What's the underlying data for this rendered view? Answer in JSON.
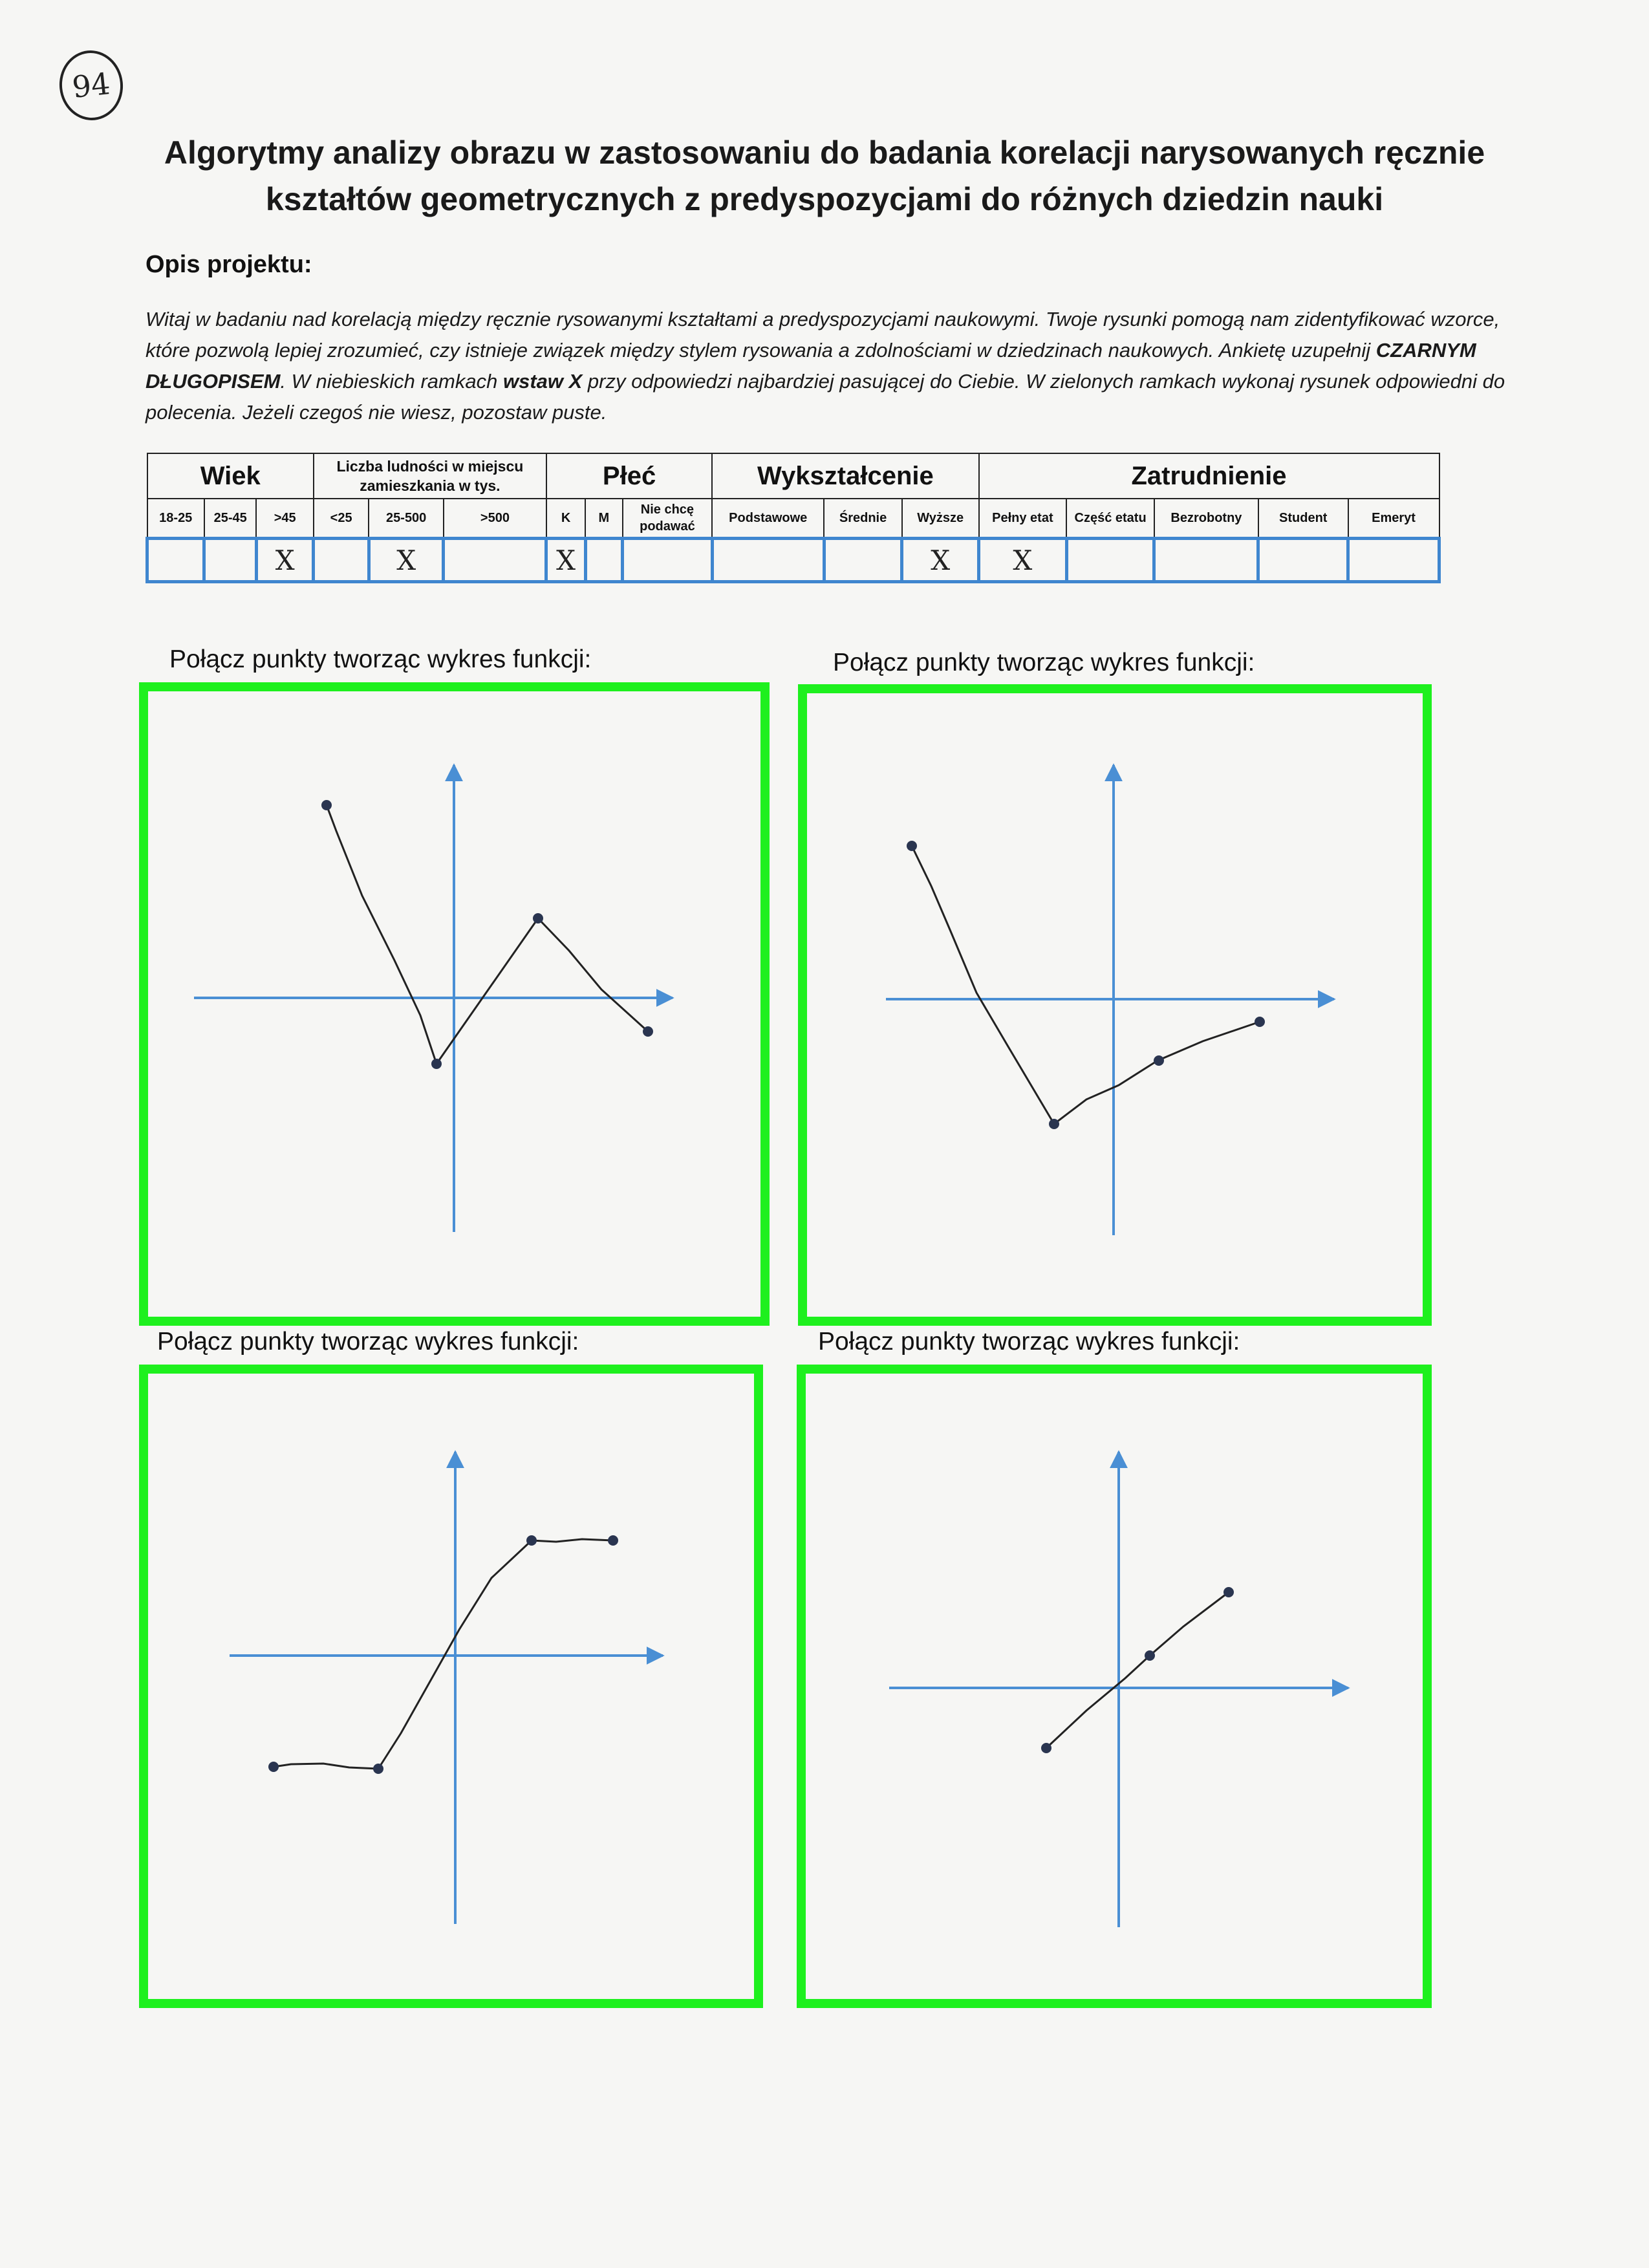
{
  "page_number": "94",
  "title_line1": "Algorytmy analizy obrazu w zastosowaniu do badania korelacji narysowanych ręcznie",
  "title_line2": "kształtów geometrycznych z predyspozycjami do różnych dziedzin nauki",
  "description": {
    "heading": "Opis projektu:",
    "part1": "Witaj w badaniu nad korelacją między ręcznie rysowanymi kształtami a predyspozycjami naukowymi. Twoje rysunki pomogą nam zidentyfikować wzorce, które pozwolą lepiej zrozumieć, czy istnieje związek między stylem rysowania a zdolnościami w dziedzinach naukowych. Ankietę uzupełnij ",
    "bold1": "CZARNYM DŁUGOPISEM",
    "part2": ". W niebieskich ramkach ",
    "bold2": "wstaw X",
    "part3": " przy odpowiedzi najbardziej pasującej do Ciebie. W zielonych ramkach wykonaj rysunek odpowiedni do polecenia. Jeżeli czegoś nie wiesz, pozostaw puste."
  },
  "survey": {
    "groups": {
      "age": "Wiek",
      "population": "Liczba ludności w miejscu zamieszkania w tys.",
      "sex": "Płeć",
      "education": "Wykształcenie",
      "employment": "Zatrudnienie"
    },
    "options": [
      "18-25",
      "25-45",
      ">45",
      "<25",
      "25-500",
      ">500",
      "K",
      "M",
      "Nie chcę podawać",
      "Podstawowe",
      "Średnie",
      "Wyższe",
      "Pełny etat",
      "Część etatu",
      "Bezrobotny",
      "Student",
      "Emeryt"
    ],
    "marks": [
      "",
      "",
      "X",
      "",
      "X",
      "",
      "X",
      "",
      "",
      "",
      "",
      "X",
      "X",
      "",
      "",
      "",
      ""
    ]
  },
  "panels": [
    {
      "label": "Połącz punkty tworząc wykres funkcji:"
    },
    {
      "label": "Połącz punkty tworząc wykres funkcji:"
    },
    {
      "label": "Połącz punkty tworząc wykres funkcji:"
    },
    {
      "label": "Połącz punkty tworząc wykres funkcji:"
    }
  ],
  "colors": {
    "green_frame": "#1ef01e",
    "blue_answer_frame": "#3f86cf",
    "axis_blue": "#4a8fd4",
    "pen": "#222222"
  }
}
